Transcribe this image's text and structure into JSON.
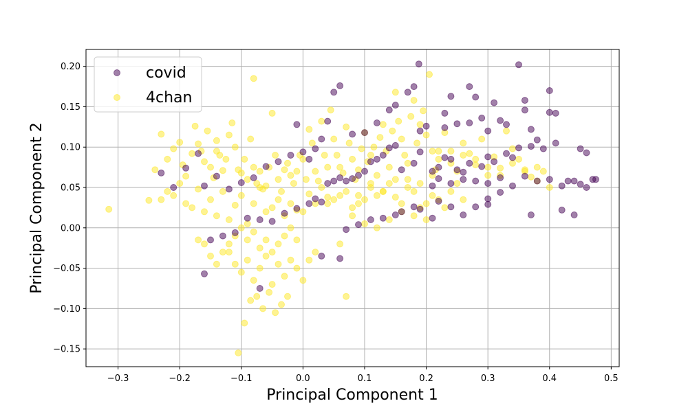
{
  "chart_data": {
    "type": "scatter",
    "xlabel": "Principal Component 1",
    "ylabel": "Principal Component 2",
    "xlim": [
      -0.352,
      0.513
    ],
    "ylim": [
      -0.172,
      0.221
    ],
    "xticks": [
      -0.3,
      -0.2,
      -0.1,
      0.0,
      0.1,
      0.2,
      0.3,
      0.4,
      0.5
    ],
    "yticks": [
      -0.15,
      -0.1,
      -0.05,
      0.0,
      0.05,
      0.1,
      0.15,
      0.2
    ],
    "xtick_labels": [
      "−0.3",
      "−0.2",
      "−0.1",
      "0.0",
      "0.1",
      "0.2",
      "0.3",
      "0.4",
      "0.5"
    ],
    "ytick_labels": [
      "−0.15",
      "−0.10",
      "−0.05",
      "0.00",
      "0.05",
      "0.10",
      "0.15",
      "0.20"
    ],
    "grid": true,
    "legend_position": "top-left",
    "series": [
      {
        "name": "covid",
        "color": "#440154",
        "x": [
          0.188,
          0.35,
          0.18,
          0.27,
          0.24,
          0.28,
          0.23,
          0.31,
          0.32,
          0.36,
          0.4,
          0.41,
          0.33,
          0.36,
          0.37,
          0.4,
          0.29,
          0.3,
          0.27,
          0.23,
          0.25,
          0.2,
          0.19,
          0.17,
          0.15,
          0.14,
          0.12,
          0.1,
          0.08,
          0.06,
          0.05,
          0.04,
          0.03,
          0.02,
          0.01,
          -0.01,
          0.0,
          -0.02,
          -0.04,
          -0.06,
          -0.08,
          -0.1,
          -0.12,
          -0.14,
          -0.16,
          -0.17,
          -0.19,
          -0.21,
          -0.23,
          0.21,
          0.22,
          0.24,
          0.26,
          0.28,
          0.3,
          0.32,
          0.34,
          0.36,
          0.38,
          0.4,
          0.42,
          0.44,
          0.45,
          0.46,
          0.47,
          0.475,
          0.43,
          0.45,
          0.46,
          0.41,
          0.39,
          0.38,
          0.37,
          0.35,
          0.34,
          0.33,
          0.31,
          0.3,
          0.29,
          0.27,
          0.26,
          0.25,
          0.24,
          0.23,
          0.22,
          0.21,
          0.19,
          0.18,
          0.16,
          0.15,
          0.14,
          0.13,
          0.12,
          0.11,
          0.1,
          0.09,
          0.08,
          0.07,
          0.06,
          0.05,
          0.04,
          0.03,
          0.02,
          0.01,
          -0.01,
          -0.03,
          -0.05,
          -0.07,
          -0.09,
          -0.11,
          -0.13,
          -0.15,
          0.42,
          0.44,
          0.37,
          0.3,
          0.28,
          0.22,
          0.19,
          0.18,
          0.16,
          0.15,
          0.13,
          0.11,
          0.09,
          0.07,
          0.26,
          0.24,
          0.3,
          0.32,
          0.21,
          -0.07,
          0.03,
          -0.16,
          0.06
        ],
        "y": [
          0.203,
          0.202,
          0.175,
          0.175,
          0.163,
          0.162,
          0.142,
          0.155,
          0.133,
          0.158,
          0.17,
          0.142,
          0.128,
          0.146,
          0.122,
          0.143,
          0.136,
          0.12,
          0.13,
          0.124,
          0.129,
          0.126,
          0.12,
          0.168,
          0.152,
          0.146,
          0.13,
          0.118,
          0.116,
          0.176,
          0.168,
          0.132,
          0.11,
          0.098,
          0.085,
          0.128,
          0.094,
          0.09,
          0.082,
          0.076,
          0.062,
          0.056,
          0.048,
          0.064,
          0.052,
          0.092,
          0.074,
          0.05,
          0.068,
          0.052,
          0.061,
          0.055,
          0.06,
          0.058,
          0.055,
          0.062,
          0.052,
          0.064,
          0.058,
          0.06,
          0.052,
          0.058,
          0.054,
          0.05,
          0.06,
          0.06,
          0.058,
          0.098,
          0.093,
          0.105,
          0.098,
          0.109,
          0.101,
          0.099,
          0.087,
          0.092,
          0.082,
          0.088,
          0.076,
          0.08,
          0.069,
          0.072,
          0.085,
          0.087,
          0.075,
          0.07,
          0.094,
          0.08,
          0.072,
          0.102,
          0.099,
          0.09,
          0.085,
          0.082,
          0.07,
          0.065,
          0.061,
          0.058,
          0.062,
          0.058,
          0.055,
          0.032,
          0.036,
          0.03,
          0.024,
          0.018,
          0.008,
          0.01,
          0.012,
          -0.006,
          -0.01,
          -0.015,
          0.022,
          0.016,
          0.016,
          0.029,
          0.026,
          0.033,
          0.023,
          0.026,
          0.02,
          0.016,
          0.012,
          0.01,
          0.004,
          -0.002,
          0.016,
          0.026,
          0.036,
          0.044,
          0.012,
          -0.075,
          -0.035,
          -0.057,
          -0.038
        ],
        "marker_size": 7,
        "alpha": 0.5
      },
      {
        "name": "4chan",
        "color": "#fde725",
        "x": [
          -0.315,
          -0.25,
          -0.24,
          -0.23,
          -0.22,
          -0.21,
          -0.2,
          -0.195,
          -0.19,
          -0.18,
          -0.175,
          -0.17,
          -0.165,
          -0.16,
          -0.155,
          -0.15,
          -0.145,
          -0.14,
          -0.135,
          -0.13,
          -0.125,
          -0.12,
          -0.115,
          -0.11,
          -0.105,
          -0.1,
          -0.095,
          -0.09,
          -0.085,
          -0.08,
          -0.075,
          -0.07,
          -0.065,
          -0.06,
          -0.055,
          -0.05,
          -0.045,
          -0.04,
          -0.035,
          -0.03,
          -0.025,
          -0.02,
          -0.015,
          -0.01,
          -0.005,
          0.0,
          0.005,
          0.01,
          0.015,
          0.02,
          0.025,
          0.03,
          0.035,
          0.04,
          0.045,
          0.05,
          0.055,
          0.06,
          0.065,
          0.07,
          0.075,
          0.08,
          0.085,
          0.09,
          0.095,
          0.1,
          0.105,
          0.11,
          0.115,
          0.12,
          0.125,
          0.13,
          0.135,
          0.14,
          0.145,
          0.15,
          0.155,
          0.16,
          0.165,
          0.17,
          0.175,
          0.18,
          0.185,
          0.19,
          0.195,
          0.2,
          0.205,
          0.21,
          0.215,
          0.22,
          0.23,
          0.24,
          0.25,
          0.26,
          0.27,
          0.28,
          0.29,
          0.3,
          0.31,
          0.32,
          0.33,
          0.34,
          0.35,
          0.36,
          0.37,
          0.38,
          0.39,
          0.4,
          -0.23,
          -0.22,
          -0.21,
          -0.2,
          -0.19,
          -0.18,
          -0.17,
          -0.16,
          -0.15,
          -0.14,
          -0.13,
          -0.12,
          -0.11,
          -0.1,
          -0.09,
          -0.08,
          -0.07,
          -0.06,
          -0.05,
          -0.04,
          -0.03,
          -0.02,
          -0.01,
          0.0,
          0.01,
          0.02,
          0.03,
          0.04,
          0.05,
          0.06,
          0.07,
          0.08,
          0.09,
          0.1,
          0.11,
          0.12,
          0.13,
          0.14,
          0.15,
          0.16,
          0.17,
          0.18,
          0.19,
          0.2,
          0.21,
          0.22,
          0.23,
          0.24,
          0.25,
          0.26,
          -0.12,
          -0.11,
          -0.1,
          -0.09,
          -0.08,
          -0.07,
          -0.06,
          -0.05,
          -0.04,
          -0.03,
          -0.02,
          -0.01,
          0.0,
          0.01,
          -0.17,
          -0.16,
          -0.15,
          -0.14,
          -0.13,
          -0.12,
          -0.11,
          -0.1,
          -0.09,
          -0.08,
          -0.07,
          -0.06,
          -0.05,
          -0.04,
          -0.03,
          -0.02,
          -0.01,
          -0.085,
          -0.075,
          -0.065,
          -0.055,
          -0.045,
          -0.035,
          -0.025,
          -0.105,
          -0.095,
          0.14,
          0.16,
          0.18,
          0.2,
          0.12,
          0.1,
          0.08,
          0.06,
          0.04,
          0.02,
          0.3,
          0.32,
          0.34,
          0.36,
          0.38,
          0.28,
          0.26,
          0.24,
          0.22,
          -0.08,
          -0.14,
          0.07,
          0.19,
          0.21,
          0.17,
          0.15,
          0.13,
          0.11,
          0.09
        ],
        "y": [
          0.023,
          0.034,
          0.072,
          0.116,
          0.085,
          0.098,
          0.106,
          0.078,
          0.064,
          0.092,
          0.126,
          0.104,
          0.095,
          0.082,
          0.12,
          0.075,
          0.062,
          0.108,
          0.09,
          0.071,
          0.085,
          0.115,
          0.13,
          0.1,
          0.072,
          0.068,
          0.085,
          0.06,
          0.11,
          0.075,
          0.055,
          0.07,
          0.048,
          0.052,
          0.075,
          0.142,
          0.09,
          0.06,
          0.045,
          0.072,
          0.08,
          0.065,
          0.055,
          0.07,
          0.09,
          0.085,
          0.06,
          0.122,
          0.105,
          0.07,
          0.058,
          0.132,
          0.09,
          0.075,
          0.146,
          0.11,
          0.09,
          0.075,
          0.068,
          0.125,
          0.105,
          0.085,
          0.06,
          0.072,
          0.098,
          0.118,
          0.082,
          0.09,
          0.1,
          0.065,
          0.112,
          0.128,
          0.095,
          0.075,
          0.12,
          0.168,
          0.132,
          0.11,
          0.09,
          0.08,
          0.138,
          0.158,
          0.105,
          0.128,
          0.145,
          0.115,
          0.19,
          0.095,
          0.072,
          0.085,
          0.118,
          0.095,
          0.07,
          0.105,
          0.092,
          0.078,
          0.11,
          0.065,
          0.088,
          0.074,
          0.12,
          0.098,
          0.085,
          0.072,
          0.063,
          0.058,
          0.07,
          0.05,
          0.035,
          0.045,
          0.04,
          0.055,
          0.03,
          0.025,
          0.048,
          0.02,
          0.035,
          0.015,
          0.045,
          0.01,
          0.028,
          0.04,
          0.005,
          0.03,
          0.05,
          0.02,
          0.025,
          0.035,
          0.015,
          0.03,
          0.022,
          0.02,
          0.042,
          0.03,
          0.05,
          0.038,
          0.035,
          0.04,
          0.045,
          0.025,
          0.03,
          0.035,
          0.05,
          0.04,
          0.045,
          0.055,
          0.038,
          0.03,
          0.06,
          0.045,
          0.025,
          0.03,
          0.04,
          0.035,
          0.025,
          0.045,
          0.055,
          0.035,
          -0.03,
          -0.045,
          -0.055,
          -0.04,
          -0.065,
          -0.05,
          -0.035,
          -0.07,
          -0.045,
          -0.06,
          -0.04,
          -0.05,
          -0.065,
          -0.04,
          -0.015,
          -0.02,
          -0.035,
          -0.045,
          -0.03,
          -0.02,
          -0.01,
          0.0,
          -0.015,
          -0.005,
          -0.025,
          -0.015,
          -0.03,
          -0.02,
          -0.01,
          0.0,
          -0.015,
          -0.09,
          -0.085,
          -0.1,
          -0.08,
          -0.105,
          -0.095,
          -0.085,
          -0.155,
          -0.118,
          0.01,
          0.02,
          0.015,
          0.01,
          0.0,
          0.005,
          0.015,
          -0.02,
          0.03,
          -0.03,
          0.075,
          0.065,
          0.08,
          0.07,
          0.075,
          0.085,
          0.09,
          0.08,
          0.095,
          0.185,
          0.095,
          -0.085,
          0.055,
          0.065,
          0.05,
          0.06,
          0.045,
          0.055,
          0.04
        ],
        "marker_size": 7,
        "alpha": 0.5
      }
    ]
  }
}
